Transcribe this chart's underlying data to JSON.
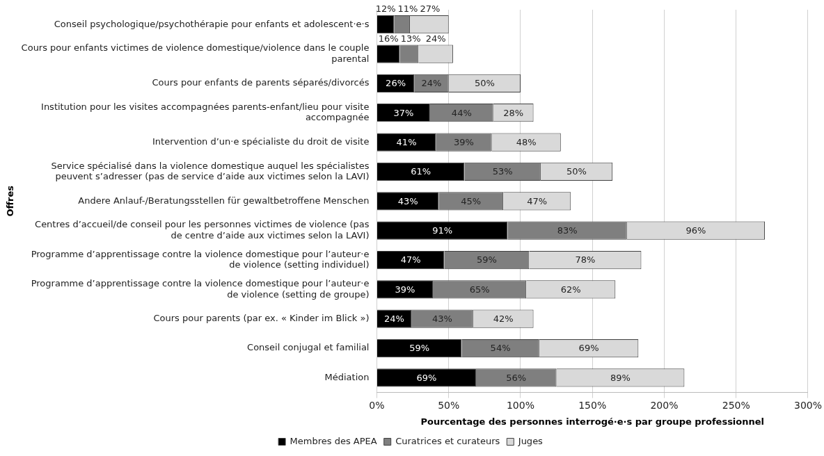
{
  "chart_data": {
    "type": "bar",
    "orientation": "horizontal",
    "stacked": true,
    "categories": [
      "Conseil psychologique/psychothérapie pour enfants et adolescent·e·s",
      "Cours pour enfants victimes de violence domestique/violence dans le couple parental",
      "Cours pour enfants de parents séparés/divorcés",
      "Institution pour les visites accompagnées parents-enfant/lieu pour visite accompagnée",
      "Intervention d’un·e spécialiste du droit de visite",
      "Service spécialisé dans la violence domestique auquel les spécialistes peuvent s’adresser (pas de service d’aide aux victimes selon la LAVI)",
      "Andere Anlauf-/Beratungsstellen für gewaltbetroffene Menschen",
      "Centres d’accueil/de conseil pour les personnes victimes de violence (pas de centre d’aide aux victimes selon la LAVI)",
      "Programme d’apprentissage contre la violence domestique pour l’auteur·e de violence (setting individuel)",
      "Programme d’apprentissage contre la violence domestique pour l’auteur·e de violence (setting de groupe)",
      "Cours pour parents (par ex. « Kinder im Blick »)",
      "Conseil conjugal et familial",
      "Médiation"
    ],
    "series": [
      {
        "name": "Membres des APEA",
        "color": "#000000",
        "values": [
          12,
          16,
          26,
          37,
          41,
          61,
          43,
          91,
          47,
          39,
          24,
          59,
          69
        ],
        "value_labels": [
          "12%",
          "16%",
          "26%",
          "37%",
          "41%",
          "61%",
          "43%",
          "91%",
          "47%",
          "39%",
          "24%",
          "59%",
          "69%"
        ]
      },
      {
        "name": "Curatrices et curateurs",
        "color": "#7f7f7f",
        "values": [
          11,
          13,
          24,
          44,
          39,
          53,
          45,
          83,
          59,
          65,
          43,
          54,
          56
        ],
        "value_labels": [
          "11%",
          "13%",
          "24%",
          "44%",
          "39%",
          "53%",
          "45%",
          "83%",
          "59%",
          "65%",
          "43%",
          "54%",
          "56%"
        ]
      },
      {
        "name": "Juges",
        "color": "#d9d9d9",
        "values": [
          27,
          24,
          50,
          28,
          48,
          50,
          47,
          96,
          78,
          62,
          42,
          69,
          89
        ],
        "value_labels": [
          "27%",
          "24%",
          "50%",
          "28%",
          "48%",
          "50%",
          "47%",
          "96%",
          "78%",
          "62%",
          "42%",
          "69%",
          "89%"
        ]
      }
    ],
    "xlim": [
      0,
      300
    ],
    "xticks": [
      {
        "value": 0,
        "label": "0%"
      },
      {
        "value": 50,
        "label": "50%"
      },
      {
        "value": 100,
        "label": "100%"
      },
      {
        "value": 150,
        "label": "150%"
      },
      {
        "value": 200,
        "label": "200%"
      },
      {
        "value": 250,
        "label": "250%"
      },
      {
        "value": 300,
        "label": "300%"
      }
    ],
    "xlabel": "Pourcentage des personnes interrogé·e·s par groupe professionnel",
    "ylabel": "Offres",
    "grid": "x",
    "legend": "bottom"
  }
}
